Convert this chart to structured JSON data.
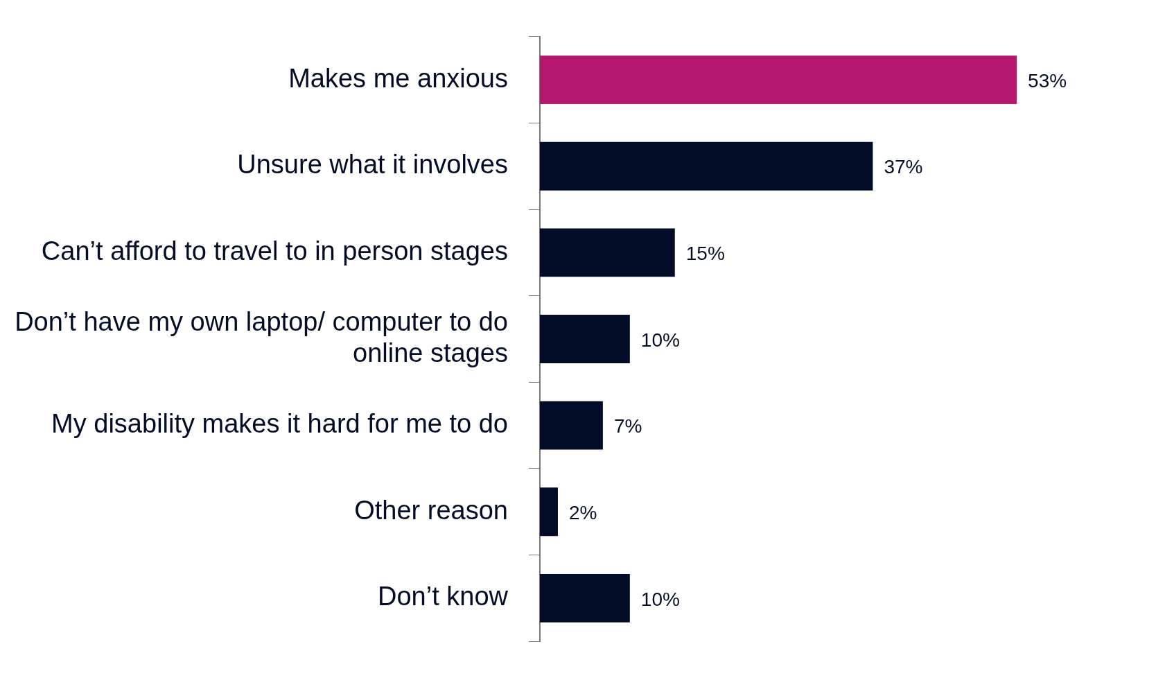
{
  "chart_data": {
    "type": "bar",
    "orientation": "horizontal",
    "categories": [
      "Makes me anxious",
      "Unsure what it involves",
      "Can’t afford to travel to in person stages",
      "Don’t have my own laptop/ computer to do online stages",
      "My disability makes it hard for me to do",
      "Other reason",
      "Don’t know"
    ],
    "values": [
      53,
      37,
      15,
      10,
      7,
      2,
      10
    ],
    "colors": [
      "#b5166e",
      "#020c27",
      "#020c27",
      "#020c27",
      "#020c27",
      "#020c27",
      "#020c27"
    ],
    "value_labels": [
      "53%",
      "37%",
      "15%",
      "10%",
      "7%",
      "2%",
      "10%"
    ],
    "grid": false,
    "legend": false
  }
}
